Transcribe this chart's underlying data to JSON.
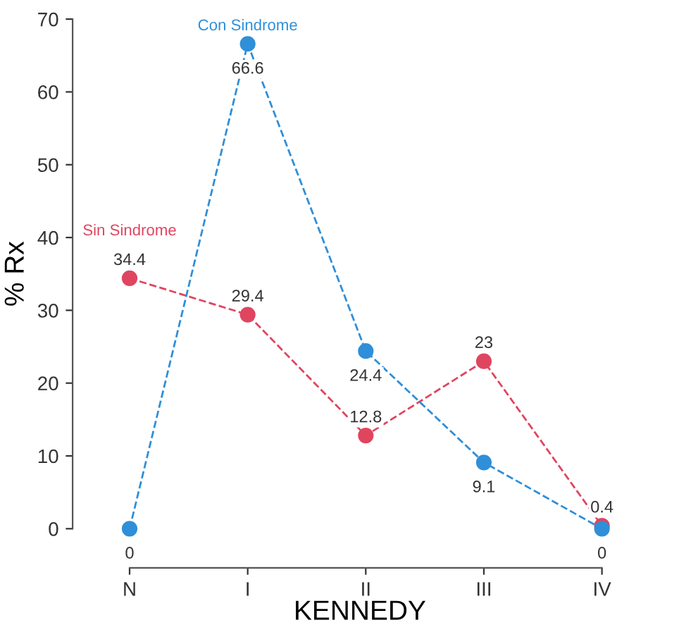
{
  "chart_data": {
    "type": "line",
    "xlabel": "KENNEDY",
    "ylabel": "% Rx",
    "categories": [
      "N",
      "I",
      "II",
      "III",
      "IV"
    ],
    "series": [
      {
        "name": "Sin Sindrome",
        "color": "#e0455f",
        "values": [
          34.4,
          29.4,
          12.8,
          23,
          0.4
        ],
        "value_labels": [
          "34.4",
          "29.4",
          "12.8",
          "23",
          "0.4"
        ]
      },
      {
        "name": "Con Sindrome",
        "color": "#2f8fd8",
        "values": [
          0,
          66.6,
          24.4,
          9.1,
          0
        ],
        "value_labels": [
          "0",
          "66.6",
          "24.4",
          "9.1",
          "0"
        ]
      }
    ],
    "ylim": [
      0,
      70
    ],
    "yticks": [
      0,
      10,
      20,
      30,
      40,
      50,
      60,
      70
    ],
    "marker": "circle",
    "line_style": "dashed",
    "grid": false,
    "legend": false
  }
}
